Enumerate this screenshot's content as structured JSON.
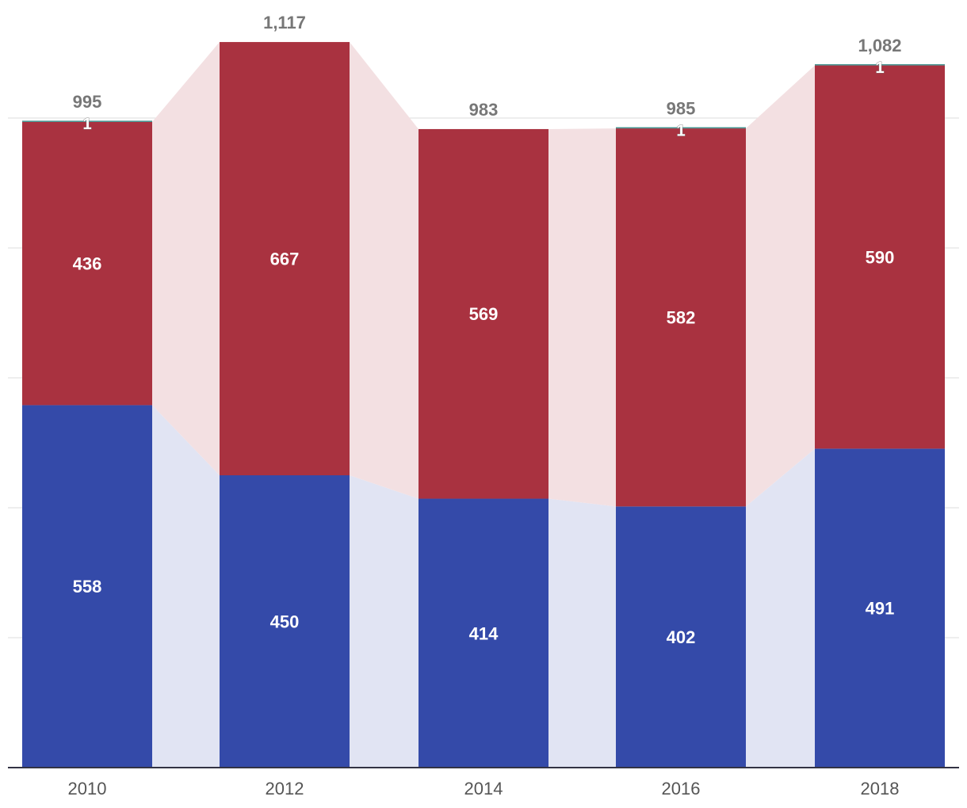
{
  "chart_data": {
    "type": "bar",
    "stacked": true,
    "categories": [
      "2010",
      "2012",
      "2014",
      "2016",
      "2018"
    ],
    "series": [
      {
        "key": "blue",
        "color": "#344aa9",
        "band_color": "#e1e4f3",
        "values": [
          558,
          450,
          414,
          402,
          491
        ]
      },
      {
        "key": "red",
        "color": "#a93240",
        "band_color": "#f3e0e2",
        "values": [
          436,
          667,
          569,
          582,
          590
        ]
      },
      {
        "key": "teal",
        "color": "#3e8f8c",
        "values": [
          1,
          0,
          0,
          1,
          1
        ]
      }
    ],
    "totals": [
      995,
      1117,
      983,
      985,
      1082
    ],
    "value_labels": {
      "blue": [
        "558",
        "450",
        "414",
        "402",
        "491"
      ],
      "red": [
        "436",
        "667",
        "569",
        "582",
        "590"
      ],
      "teal": [
        "1",
        "",
        "",
        "1",
        "1"
      ]
    },
    "total_labels": [
      "995",
      "1,117",
      "983",
      "985",
      "1,082"
    ],
    "ylim": [
      0,
      1150
    ],
    "grid": true,
    "grid_step": 200,
    "title": "",
    "xlabel": "",
    "ylabel": ""
  }
}
